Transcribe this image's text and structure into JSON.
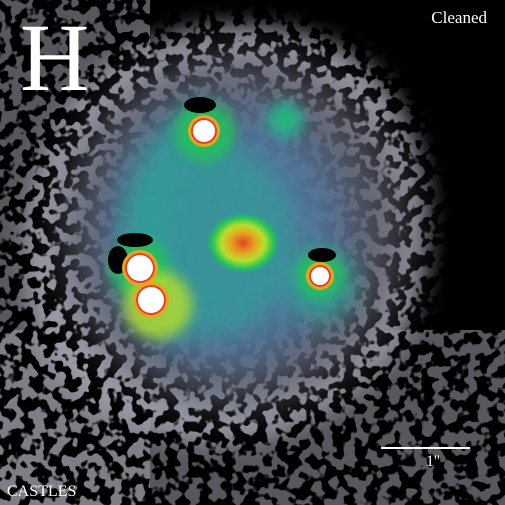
{
  "image": {
    "band": "H",
    "processing": "Cleaned",
    "survey": "CASTLES",
    "scale_bar_label": "1''",
    "colormap": [
      "#000000",
      "#5a5a66",
      "#4f7aa6",
      "#2fa39a",
      "#22c25a",
      "#b5df2b",
      "#e5a61f",
      "#e0452a",
      "#ffffff"
    ]
  },
  "sources": [
    {
      "id": "image-a",
      "kind": "quasar-image"
    },
    {
      "id": "image-b",
      "kind": "quasar-image"
    },
    {
      "id": "image-c",
      "kind": "quasar-image"
    },
    {
      "id": "image-d",
      "kind": "quasar-image"
    },
    {
      "id": "lens-galaxy",
      "kind": "lens-galaxy"
    }
  ]
}
